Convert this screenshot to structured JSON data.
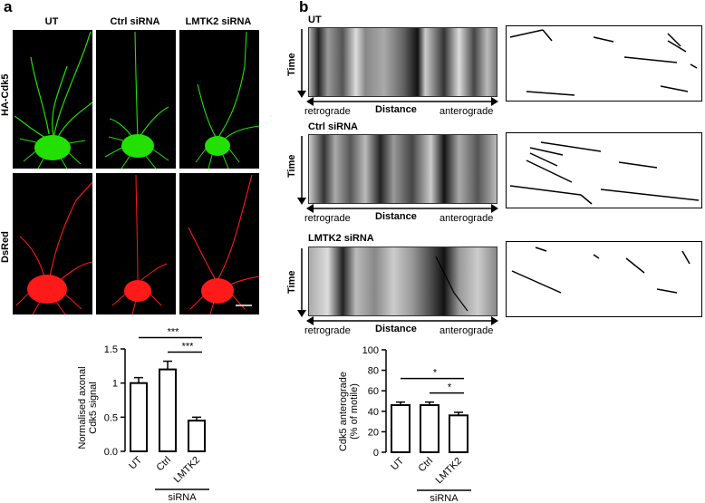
{
  "panel_a": {
    "letter": "a",
    "columns": [
      "UT",
      "Ctrl siRNA",
      "LMTK2 siRNA"
    ],
    "rows": [
      "HA-Cdk5",
      "DsRed"
    ],
    "colors": {
      "ha_cdk5": "#22e000",
      "dsred": "#ff1a1a",
      "background": "#000000"
    }
  },
  "panel_b": {
    "letter": "b",
    "kymographs": [
      {
        "title": "UT",
        "time_label": "Time",
        "left": "retrograde",
        "center": "Distance",
        "right": "anterograde"
      },
      {
        "title": "Ctrl siRNA",
        "time_label": "Time",
        "left": "retrograde",
        "center": "Distance",
        "right": "anterograde"
      },
      {
        "title": "LMTK2 siRNA",
        "time_label": "Time",
        "left": "retrograde",
        "center": "Distance",
        "right": "anterograde"
      }
    ]
  },
  "chart_data": [
    {
      "type": "bar",
      "categories": [
        "UT",
        "Ctrl",
        "LMTK2"
      ],
      "values": [
        1.0,
        1.2,
        0.45
      ],
      "errors": [
        0.08,
        0.12,
        0.05
      ],
      "ylabel": "Normalised axonal Cdk5 signal",
      "ylim": [
        0,
        1.5
      ],
      "yticks": [
        "0.0",
        "0.5",
        "1",
        "1.5"
      ],
      "group_label": "siRNA",
      "significance": [
        {
          "label": "***",
          "from": "UT",
          "to": "LMTK2"
        },
        {
          "label": "***",
          "from": "Ctrl",
          "to": "LMTK2"
        }
      ]
    },
    {
      "type": "bar",
      "categories": [
        "UT",
        "Ctrl",
        "LMTK2"
      ],
      "values": [
        46,
        46,
        36
      ],
      "errors": [
        3,
        3,
        3
      ],
      "ylabel": "Cdk5 anterograde (% of motile)",
      "ylim": [
        0,
        100
      ],
      "yticks": [
        "0",
        "20",
        "40",
        "60",
        "80",
        "100"
      ],
      "group_label": "siRNA",
      "significance": [
        {
          "label": "*",
          "from": "UT",
          "to": "LMTK2"
        },
        {
          "label": "*",
          "from": "Ctrl",
          "to": "LMTK2"
        }
      ]
    }
  ]
}
